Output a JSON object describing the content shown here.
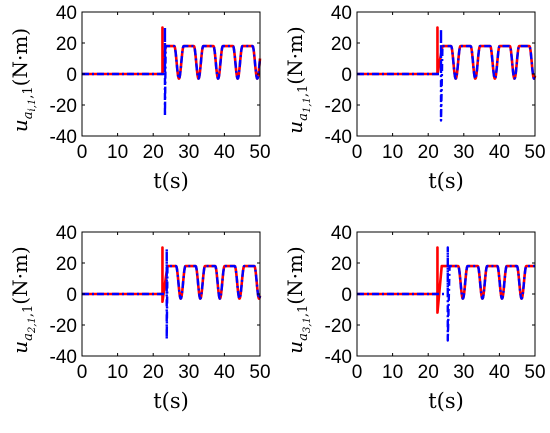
{
  "chart_data": [
    {
      "type": "line",
      "title": "",
      "xlabel": "t(s)",
      "ylabel": {
        "base": "u",
        "sub": "a",
        "subsub": "i,1",
        "suffix": "1",
        "unit": "(N·m)"
      },
      "xlim": [
        0,
        50
      ],
      "ylim": [
        -40,
        40
      ],
      "xticks": [
        0,
        10,
        20,
        30,
        40,
        50
      ],
      "yticks": [
        -40,
        -20,
        0,
        20,
        40
      ],
      "grid": false,
      "series": [
        {
          "color": "#ff0000",
          "style": "solid",
          "spikes": [
            {
              "x": 22.6,
              "y": 30
            },
            {
              "x": 22.6,
              "y": 0
            }
          ]
        },
        {
          "color": "#0000ff",
          "style": "dashdot",
          "spikes": [
            {
              "x": 23.3,
              "y": 30
            },
            {
              "x": 23.3,
              "y": -27
            }
          ]
        }
      ],
      "oscillation": {
        "start": 23.5,
        "end": 50,
        "min": -3,
        "max": 18,
        "period": 5.5
      }
    },
    {
      "type": "line",
      "title": "",
      "xlabel": "t(s)",
      "ylabel": {
        "base": "u",
        "sub": "a",
        "subsub": "1,1",
        "suffix": "1",
        "unit": "(N·m)"
      },
      "xlim": [
        0,
        50
      ],
      "ylim": [
        -40,
        40
      ],
      "xticks": [
        0,
        10,
        20,
        30,
        40,
        50
      ],
      "yticks": [
        -40,
        -20,
        0,
        20,
        40
      ],
      "grid": false,
      "series": [
        {
          "color": "#ff0000",
          "style": "solid",
          "spikes": [
            {
              "x": 22.6,
              "y": 30
            },
            {
              "x": 22.6,
              "y": 0
            }
          ]
        },
        {
          "color": "#0000ff",
          "style": "dashdot",
          "spikes": [
            {
              "x": 23.6,
              "y": 29
            },
            {
              "x": 23.6,
              "y": -30
            }
          ]
        }
      ],
      "oscillation": {
        "start": 24,
        "end": 50,
        "min": -3,
        "max": 18,
        "period": 5.5
      }
    },
    {
      "type": "line",
      "title": "",
      "xlabel": "t(s)",
      "ylabel": {
        "base": "u",
        "sub": "a",
        "subsub": "2,1",
        "suffix": "1",
        "unit": "(N·m)"
      },
      "xlim": [
        0,
        50
      ],
      "ylim": [
        -40,
        40
      ],
      "xticks": [
        0,
        10,
        20,
        30,
        40,
        50
      ],
      "yticks": [
        -40,
        -20,
        0,
        20,
        40
      ],
      "grid": false,
      "series": [
        {
          "color": "#ff0000",
          "style": "solid",
          "spikes": [
            {
              "x": 22.6,
              "y": 30
            },
            {
              "x": 22.6,
              "y": -5
            }
          ]
        },
        {
          "color": "#0000ff",
          "style": "dashdot",
          "spikes": [
            {
              "x": 23.8,
              "y": 29
            },
            {
              "x": 23.8,
              "y": -29
            }
          ]
        }
      ],
      "oscillation": {
        "start": 24,
        "end": 50,
        "min": -3,
        "max": 18,
        "period": 5.5
      }
    },
    {
      "type": "line",
      "title": "",
      "xlabel": "t(s)",
      "ylabel": {
        "base": "u",
        "sub": "a",
        "subsub": "3,1",
        "suffix": "1",
        "unit": "(N·m)"
      },
      "xlim": [
        0,
        50
      ],
      "ylim": [
        -40,
        40
      ],
      "xticks": [
        0,
        10,
        20,
        30,
        40,
        50
      ],
      "yticks": [
        -40,
        -20,
        0,
        20,
        40
      ],
      "grid": false,
      "series": [
        {
          "color": "#ff0000",
          "style": "solid",
          "spikes": [
            {
              "x": 22.6,
              "y": 30
            },
            {
              "x": 22.6,
              "y": -12
            },
            {
              "x": 23.8,
              "y": 18
            }
          ]
        },
        {
          "color": "#0000ff",
          "style": "dashdot",
          "spikes": [
            {
              "x": 25.5,
              "y": 30
            },
            {
              "x": 25.5,
              "y": -30
            }
          ]
        }
      ],
      "oscillation": {
        "start": 26,
        "end": 50,
        "min": -3,
        "max": 18,
        "period": 5.5
      }
    }
  ]
}
